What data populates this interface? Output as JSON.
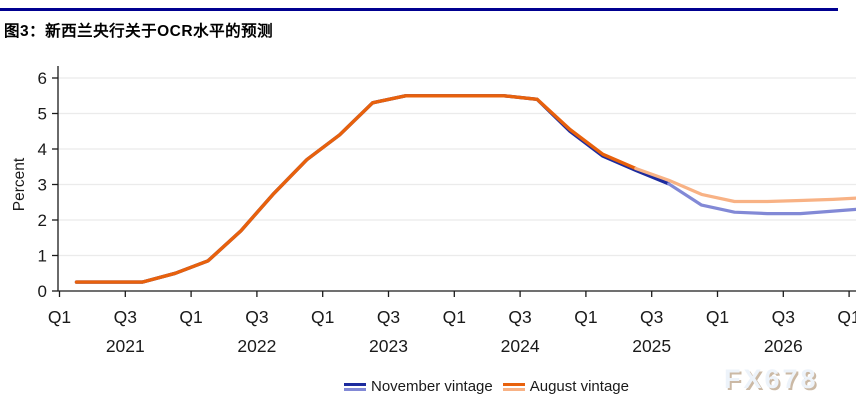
{
  "header": {
    "title": "图3：新西兰央行关于OCR水平的预测",
    "rule_color": "#000090"
  },
  "watermark": "FX678",
  "legend": {
    "items": [
      {
        "label": "November vintage",
        "dark_color": "#1c2b9e",
        "light_color": "#8289d6"
      },
      {
        "label": "August vintage",
        "dark_color": "#e8610c",
        "light_color": "#f8b285"
      }
    ]
  },
  "chart_data": {
    "type": "line",
    "title": "",
    "xlabel": "",
    "ylabel": "Percent",
    "ylim": [
      0,
      6
    ],
    "yticks": [
      0,
      1,
      2,
      3,
      4,
      5,
      6
    ],
    "grid": true,
    "legend_position": "bottom",
    "x_axis": {
      "tick_labels": [
        "Q1",
        "Q3",
        "Q1",
        "Q3",
        "Q1",
        "Q3",
        "Q1",
        "Q3",
        "Q1",
        "Q3",
        "Q1",
        "Q3",
        "Q1"
      ],
      "year_labels": [
        "2021",
        "2022",
        "2023",
        "2024",
        "2025",
        "2026"
      ]
    },
    "quarters": [
      "2021Q1",
      "2021Q2",
      "2021Q3",
      "2021Q4",
      "2022Q1",
      "2022Q2",
      "2022Q3",
      "2022Q4",
      "2023Q1",
      "2023Q2",
      "2023Q3",
      "2023Q4",
      "2024Q1",
      "2024Q2",
      "2024Q3",
      "2024Q4",
      "2025Q1",
      "2025Q2",
      "2025Q3",
      "2025Q4",
      "2026Q1",
      "2026Q2",
      "2026Q3",
      "2026Q4",
      "2027Q1"
    ],
    "series": [
      {
        "name": "November vintage",
        "history_color": "#1c2b9e",
        "forecast_color": "#8289d6",
        "forecast_start_index": 18,
        "values": [
          0.25,
          0.25,
          0.25,
          0.5,
          0.85,
          1.7,
          2.75,
          3.7,
          4.4,
          5.3,
          5.5,
          5.5,
          5.5,
          5.5,
          5.4,
          4.5,
          3.8,
          3.4,
          3.02,
          2.42,
          2.22,
          2.18,
          2.18,
          2.25,
          2.32
        ]
      },
      {
        "name": "August vintage",
        "history_color": "#e8610c",
        "forecast_color": "#f8b285",
        "forecast_start_index": 17,
        "values": [
          0.25,
          0.25,
          0.25,
          0.5,
          0.85,
          1.7,
          2.75,
          3.7,
          4.4,
          5.3,
          5.5,
          5.5,
          5.5,
          5.5,
          5.4,
          4.55,
          3.85,
          3.45,
          3.12,
          2.72,
          2.52,
          2.52,
          2.55,
          2.58,
          2.63
        ]
      }
    ]
  }
}
